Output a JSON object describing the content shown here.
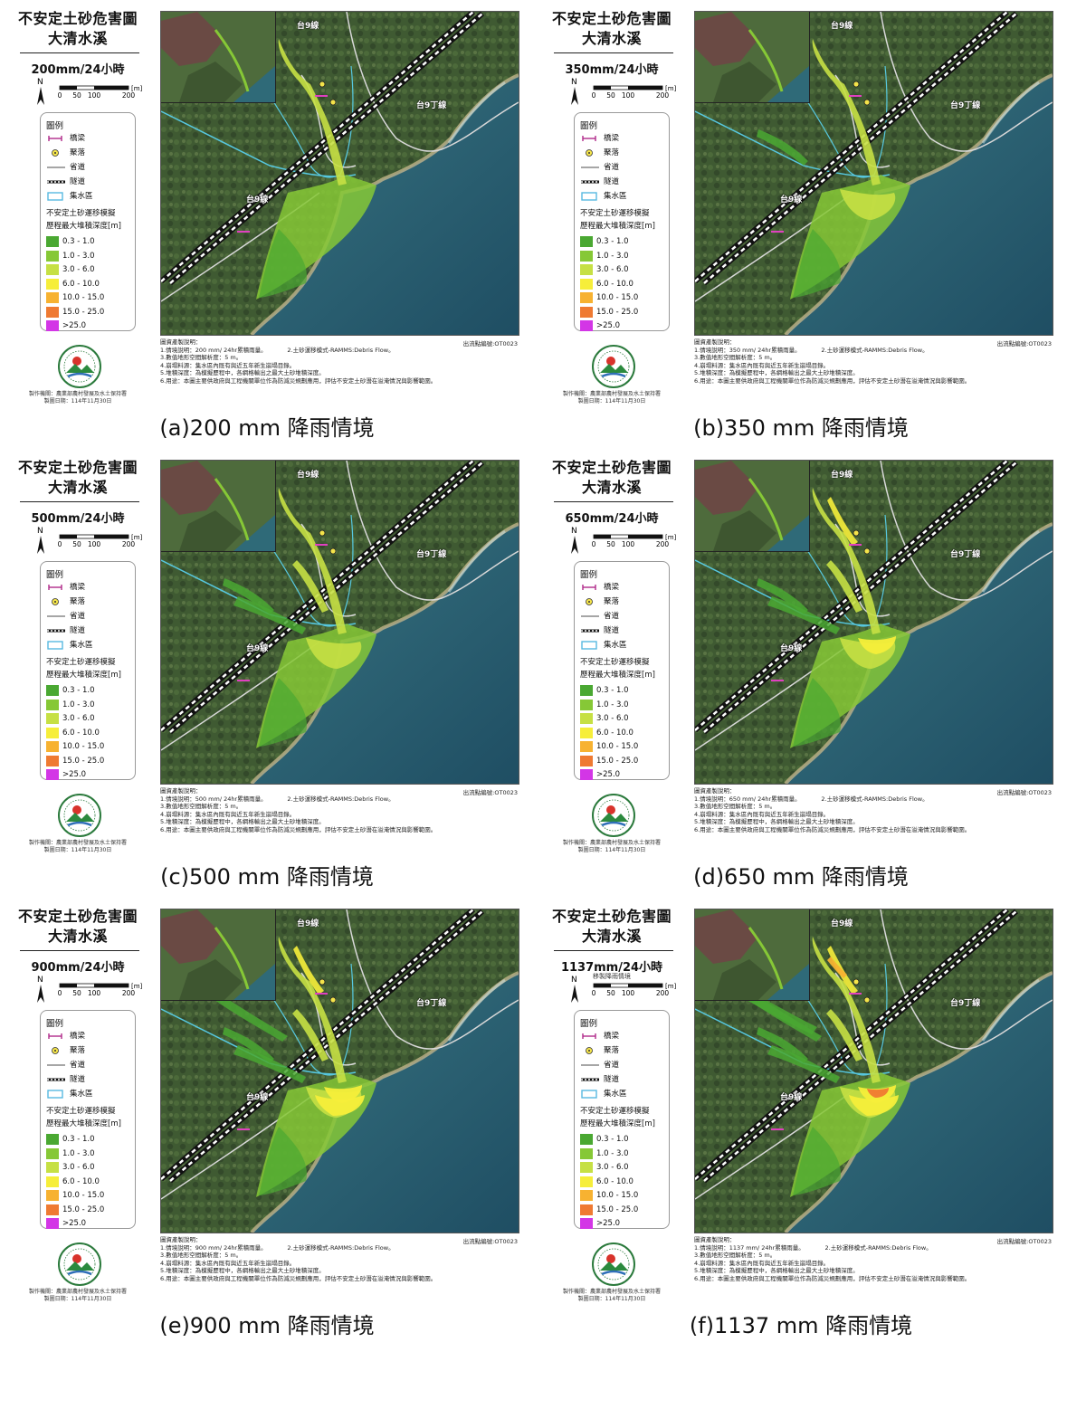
{
  "legend_title": "不安定土砂危害圖",
  "location": "大清水溪",
  "scale": {
    "labels": [
      "0",
      "50",
      "100",
      "200"
    ],
    "unit": "[m]"
  },
  "north_label": "N",
  "legend": {
    "heading": "圖例",
    "symbols": [
      {
        "label": "橋梁",
        "icon": "bridge-icon"
      },
      {
        "label": "聚落",
        "icon": "settlement-icon"
      },
      {
        "label": "省道",
        "icon": "road-line-icon"
      },
      {
        "label": "隧道",
        "icon": "tunnel-line-icon"
      },
      {
        "label": "集水區",
        "icon": "catchment-icon"
      }
    ],
    "simulation_title_1": "不安定土砂運移模擬",
    "simulation_title_2": "歷程最大堆積深度[m]",
    "depth_classes": [
      {
        "label": "0.3 - 1.0",
        "color": "#4aa832"
      },
      {
        "label": "1.0 - 3.0",
        "color": "#86c836"
      },
      {
        "label": "3.0 - 6.0",
        "color": "#c6e044"
      },
      {
        "label": "6.0 - 10.0",
        "color": "#f6ee3a"
      },
      {
        "label": "10.0 - 15.0",
        "color": "#f7b231"
      },
      {
        "label": "15.0 - 25.0",
        "color": "#ef7a32"
      },
      {
        "label": ">25.0",
        "color": "#d336e6"
      }
    ]
  },
  "road_labels": {
    "north": "台9線",
    "east": "台9丁線",
    "west": "台9線"
  },
  "map_code": "出流點編號:OT0023",
  "agency": {
    "line1": "製作機關：農業部農村發展及水土保持署",
    "line2": "製圖日期：114年11月30日"
  },
  "notes_common": {
    "heading": "圖資產製說明：",
    "method": "2.土砂運移模式-RAMMS:Debris Flow。",
    "dem": "3.數值地形空間解析度：5 m。",
    "collapse": "4.崩塌料源：集水區內既有與近五年新生崩塌目錄。",
    "depth": "5.堆積深度：為模擬歷程中，各網格輸出之最大土砂堆積深度。",
    "usage": "6.用途：本圖主要供政府與工程機關單位作為防減災規劃應用，評估不安定土砂潛在溢淹情況與影響範圍。"
  },
  "panels": [
    {
      "rain": "200mm/24小時",
      "scenario": "1.情境說明：200 mm/ 24hr累積雨量。",
      "caption": "(a)200 mm 降雨情境",
      "stage": 1
    },
    {
      "rain": "350mm/24小時",
      "scenario": "1.情境說明：350 mm/ 24hr累積雨量。",
      "caption": "(b)350 mm 降雨情境",
      "stage": 2
    },
    {
      "rain": "500mm/24小時",
      "scenario": "1.情境說明：500 mm/ 24hr累積雨量。",
      "caption": "(c)500 mm 降雨情境",
      "stage": 3
    },
    {
      "rain": "650mm/24小時",
      "scenario": "1.情境說明：650 mm/ 24hr累積雨量。",
      "caption": "(d)650 mm 降雨情境",
      "stage": 4
    },
    {
      "rain": "900mm/24小時",
      "scenario": "1.情境說明：900 mm/ 24hr累積雨量。",
      "caption": "(e)900 mm 降雨情境",
      "stage": 5
    },
    {
      "rain": "1137mm/24小時",
      "subtitle": "移製降雨情境",
      "scenario": "1.情境說明：1137 mm/ 24hr累積雨量。",
      "caption": "(f)1137 mm 降雨情境",
      "stage": 6
    }
  ]
}
